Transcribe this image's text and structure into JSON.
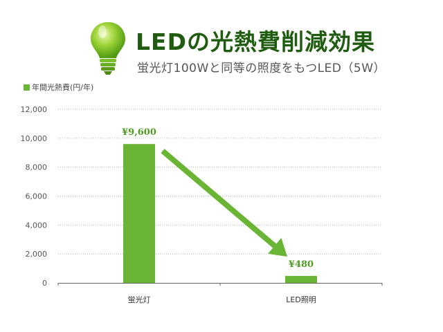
{
  "header": {
    "title": "LEDの光熱費削減効果",
    "subtitle": "蛍光灯100Wと同等の照度をもつLED（5W）",
    "icon": "light-bulb-icon"
  },
  "legend": {
    "label": "年間光熱費(円/年)",
    "color": "#6ab536"
  },
  "chart_data": {
    "type": "bar",
    "categories": [
      "蛍光灯",
      "LED照明"
    ],
    "values": [
      9600,
      480
    ],
    "data_labels": [
      "¥9,600",
      "¥480"
    ],
    "ylim": [
      0,
      12000
    ],
    "yticks": [
      0,
      2000,
      4000,
      6000,
      8000,
      10000,
      12000
    ],
    "ytick_labels": [
      "0",
      "2,000",
      "4,000",
      "6,000",
      "8,000",
      "10,000",
      "12,000"
    ],
    "series": [
      {
        "name": "年間光熱費(円/年)",
        "values": [
          9600,
          480
        ]
      }
    ],
    "grid": true,
    "legend_position": "top-left",
    "annotation": "arrow from 蛍光灯 bar down to LED照明 bar",
    "colors": {
      "bar": "#6ab536",
      "arrow": "#6ab536",
      "label": "#4f9a22"
    }
  }
}
